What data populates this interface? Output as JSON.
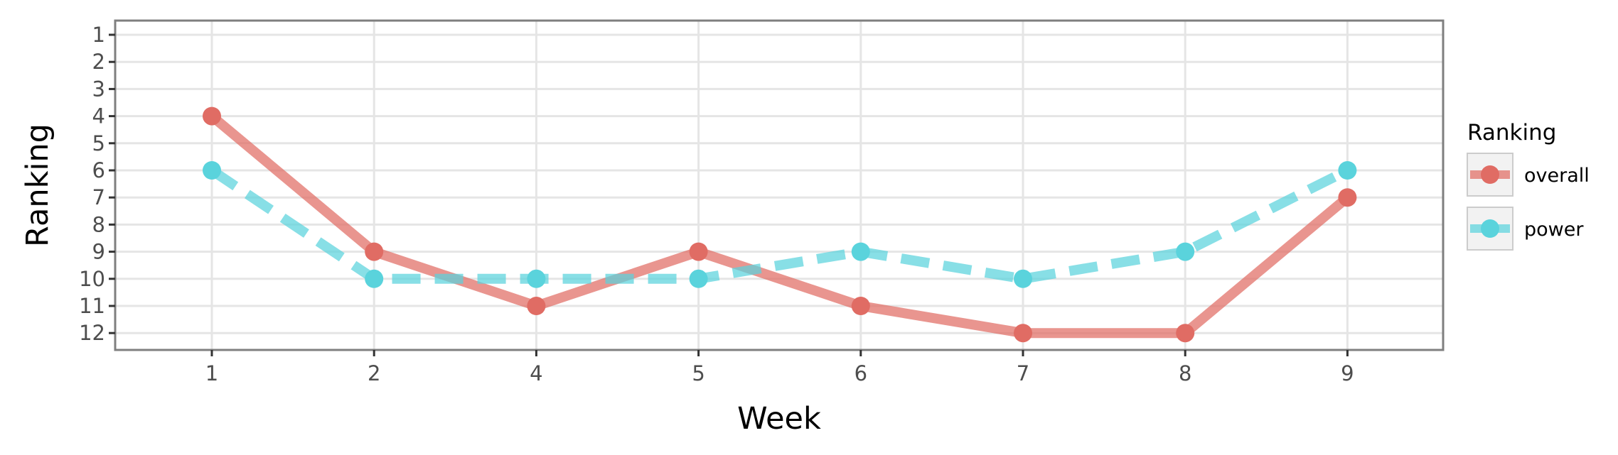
{
  "chart_data": {
    "type": "line",
    "xlabel": "Week",
    "ylabel": "Ranking",
    "categories": [
      "1",
      "2",
      "4",
      "5",
      "6",
      "7",
      "8",
      "9"
    ],
    "y_ticks": [
      "1",
      "2",
      "3",
      "4",
      "5",
      "6",
      "7",
      "8",
      "9",
      "10",
      "11",
      "12"
    ],
    "ylim": [
      1,
      12
    ],
    "y_reversed": true,
    "grid": true,
    "legend": {
      "title": "Ranking",
      "placement": "right"
    },
    "series": [
      {
        "name": "overall",
        "color": "#e06c64",
        "line_style": "solid",
        "values": [
          4,
          9,
          11,
          9,
          11,
          12,
          12,
          7
        ]
      },
      {
        "name": "power",
        "color": "#5ad3dc",
        "line_style": "dashed",
        "values": [
          6,
          10,
          10,
          10,
          9,
          10,
          9,
          6
        ]
      }
    ]
  }
}
